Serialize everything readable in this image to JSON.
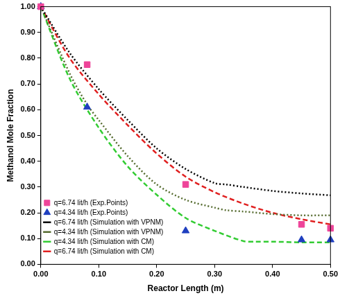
{
  "chart_data": {
    "type": "line",
    "x_label": "Reactor Length (m)",
    "y_label": "Methanol Mole Fraction",
    "xlim": [
      0,
      0.5
    ],
    "ylim": [
      0,
      1
    ],
    "xticks": [
      {
        "value": 0,
        "label": "0.00"
      },
      {
        "value": 0.1,
        "label": "0.10"
      },
      {
        "value": 0.2,
        "label": "0.20"
      },
      {
        "value": 0.3,
        "label": "0.30"
      },
      {
        "value": 0.4,
        "label": "0.40"
      },
      {
        "value": 0.5,
        "label": "0.50"
      }
    ],
    "yticks": [
      {
        "value": 0,
        "label": "0.00"
      },
      {
        "value": 0.1,
        "label": "0.10"
      },
      {
        "value": 0.2,
        "label": "0.20"
      },
      {
        "value": 0.3,
        "label": "0.30"
      },
      {
        "value": 0.4,
        "label": "0.40"
      },
      {
        "value": 0.5,
        "label": "0.50"
      },
      {
        "value": 0.6,
        "label": "0.60"
      },
      {
        "value": 0.7,
        "label": "0.70"
      },
      {
        "value": 0.8,
        "label": "0.80"
      },
      {
        "value": 0.9,
        "label": "0.90"
      },
      {
        "value": 1,
        "label": "1.00"
      }
    ],
    "grid": false,
    "legend": "top-right",
    "series": [
      {
        "name": "q=6.74 lit/h (Exp.Points)",
        "type": "scatter",
        "marker": "square",
        "color": "#ee4499",
        "x": [
          0,
          0.08,
          0.25,
          0.45,
          0.5
        ],
        "values": [
          1.0,
          0.775,
          0.31,
          0.155,
          0.14
        ]
      },
      {
        "name": "q=4.34 lit/h (Exp.Points)",
        "type": "scatter",
        "marker": "triangle",
        "color": "#1f3fbf",
        "x": [
          0,
          0.08,
          0.25,
          0.45,
          0.5
        ],
        "values": [
          1.0,
          0.61,
          0.13,
          0.095,
          0.095
        ]
      },
      {
        "name": "q=6.74 lit/h (Simulation with VPNM)",
        "type": "line",
        "line_style": "dotted",
        "color": "#000000",
        "x": [
          0,
          0.05,
          0.1,
          0.15,
          0.2,
          0.25,
          0.3,
          0.32,
          0.35,
          0.4,
          0.45,
          0.5
        ],
        "values": [
          1.0,
          0.82,
          0.68,
          0.56,
          0.45,
          0.37,
          0.315,
          0.31,
          0.3,
          0.285,
          0.275,
          0.268
        ]
      },
      {
        "name": "q=4.34 lit/h (Simulation with VPNM)",
        "type": "line",
        "line_style": "dotted",
        "color": "#556b2f",
        "x": [
          0,
          0.05,
          0.08,
          0.1,
          0.15,
          0.2,
          0.25,
          0.3,
          0.32,
          0.35,
          0.4,
          0.45,
          0.5
        ],
        "values": [
          1.0,
          0.74,
          0.62,
          0.56,
          0.42,
          0.31,
          0.25,
          0.22,
          0.21,
          0.205,
          0.195,
          0.19,
          0.19
        ]
      },
      {
        "name": "q=4.34 lit/h (Simulation with CM)",
        "type": "line",
        "line_style": "dashed",
        "color": "#33cc33",
        "x": [
          0,
          0.05,
          0.1,
          0.15,
          0.2,
          0.25,
          0.3,
          0.35,
          0.37,
          0.4,
          0.45,
          0.5
        ],
        "values": [
          1.0,
          0.72,
          0.53,
          0.38,
          0.27,
          0.18,
          0.13,
          0.09,
          0.088,
          0.088,
          0.085,
          0.085
        ]
      },
      {
        "name": "q=6.74 lit/h (Simulation with CM)",
        "type": "line",
        "line_style": "dashed",
        "color": "#e02020",
        "x": [
          0,
          0.05,
          0.1,
          0.15,
          0.2,
          0.25,
          0.3,
          0.35,
          0.4,
          0.45,
          0.5
        ],
        "values": [
          1.0,
          0.8,
          0.66,
          0.54,
          0.43,
          0.34,
          0.28,
          0.235,
          0.2,
          0.175,
          0.155
        ]
      }
    ]
  }
}
